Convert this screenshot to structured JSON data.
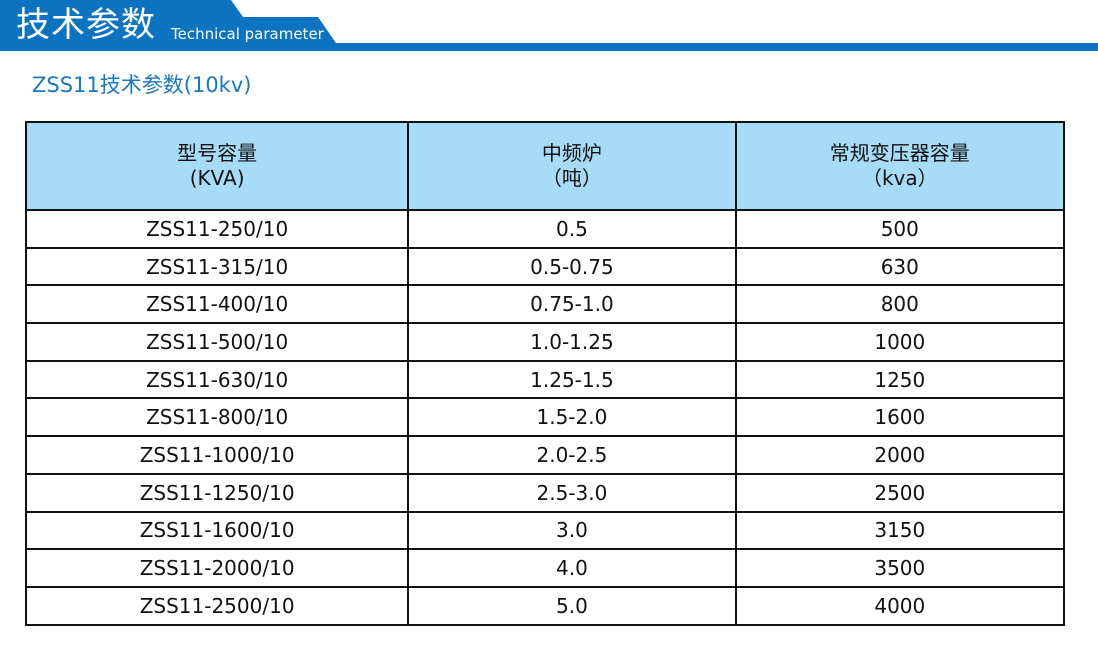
{
  "header": {
    "title_cn": "技术参数",
    "title_en": "Technical parameter",
    "accent": "#0b73c0"
  },
  "subtitle": "ZSS11技术参数(10kv)",
  "table": {
    "headers": [
      [
        "型号容量",
        "(KVA)"
      ],
      [
        "中频炉",
        "（吨）"
      ],
      [
        "常规变压器容量",
        "（kva）"
      ]
    ],
    "rows": [
      [
        "ZSS11-250/10",
        "0.5",
        "500"
      ],
      [
        "ZSS11-315/10",
        "0.5-0.75",
        "630"
      ],
      [
        "ZSS11-400/10",
        "0.75-1.0",
        "800"
      ],
      [
        "ZSS11-500/10",
        "1.0-1.25",
        "1000"
      ],
      [
        "ZSS11-630/10",
        "1.25-1.5",
        "1250"
      ],
      [
        "ZSS11-800/10",
        "1.5-2.0",
        "1600"
      ],
      [
        "ZSS11-1000/10",
        "2.0-2.5",
        "2000"
      ],
      [
        "ZSS11-1250/10",
        "2.5-3.0",
        "2500"
      ],
      [
        "ZSS11-1600/10",
        "3.0",
        "3150"
      ],
      [
        "ZSS11-2000/10",
        "4.0",
        "3500"
      ],
      [
        "ZSS11-2500/10",
        "5.0",
        "4000"
      ]
    ]
  }
}
